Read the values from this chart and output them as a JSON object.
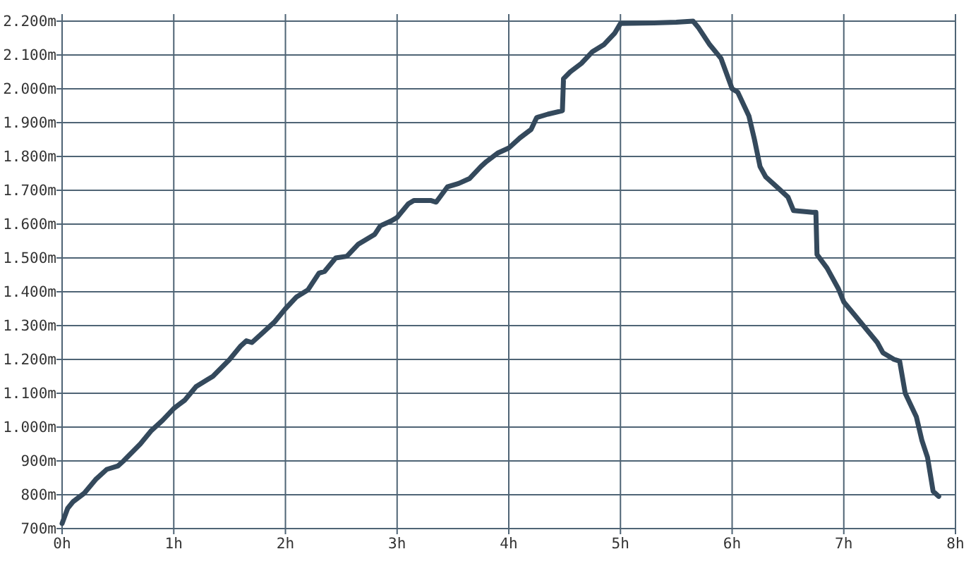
{
  "chart_data": {
    "type": "line",
    "xlim": [
      0,
      8
    ],
    "ylim": [
      700,
      2200
    ],
    "xticks": [
      {
        "value": 0,
        "label": "0h"
      },
      {
        "value": 1,
        "label": "1h"
      },
      {
        "value": 2,
        "label": "2h"
      },
      {
        "value": 3,
        "label": "3h"
      },
      {
        "value": 4,
        "label": "4h"
      },
      {
        "value": 5,
        "label": "5h"
      },
      {
        "value": 6,
        "label": "6h"
      },
      {
        "value": 7,
        "label": "7h"
      },
      {
        "value": 8,
        "label": "8h"
      }
    ],
    "yticks": [
      {
        "value": 700,
        "label": "700m"
      },
      {
        "value": 800,
        "label": "800m"
      },
      {
        "value": 900,
        "label": "900m"
      },
      {
        "value": 1000,
        "label": "1.000m"
      },
      {
        "value": 1100,
        "label": "1.100m"
      },
      {
        "value": 1200,
        "label": "1.200m"
      },
      {
        "value": 1300,
        "label": "1.300m"
      },
      {
        "value": 1400,
        "label": "1.400m"
      },
      {
        "value": 1500,
        "label": "1.500m"
      },
      {
        "value": 1600,
        "label": "1.600m"
      },
      {
        "value": 1700,
        "label": "1.700m"
      },
      {
        "value": 1800,
        "label": "1.800m"
      },
      {
        "value": 1900,
        "label": "1.900m"
      },
      {
        "value": 2000,
        "label": "2.000m"
      },
      {
        "value": 2100,
        "label": "2.100m"
      },
      {
        "value": 2200,
        "label": "2.200m"
      }
    ],
    "grid": true,
    "marker": "none",
    "line_style": "solid",
    "series": [
      {
        "color": "#34495c",
        "x": [
          0,
          0.05,
          0.1,
          0.2,
          0.3,
          0.4,
          0.5,
          0.55,
          0.7,
          0.8,
          0.9,
          1.0,
          1.1,
          1.2,
          1.3,
          1.35,
          1.5,
          1.6,
          1.65,
          1.7,
          1.8,
          1.9,
          2.0,
          2.1,
          2.2,
          2.3,
          2.35,
          2.45,
          2.55,
          2.65,
          2.8,
          2.85,
          2.95,
          3.0,
          3.1,
          3.15,
          3.3,
          3.35,
          3.45,
          3.55,
          3.65,
          3.75,
          3.8,
          3.9,
          4.0,
          4.1,
          4.2,
          4.25,
          4.35,
          4.48,
          4.49,
          4.55,
          4.65,
          4.75,
          4.85,
          4.95,
          5.0,
          5.3,
          5.5,
          5.65,
          5.7,
          5.8,
          5.9,
          6.0,
          6.05,
          6.15,
          6.2,
          6.25,
          6.3,
          6.4,
          6.5,
          6.55,
          6.72,
          6.75,
          6.76,
          6.85,
          6.95,
          7.0,
          7.1,
          7.2,
          7.3,
          7.35,
          7.45,
          7.5,
          7.55,
          7.65,
          7.7,
          7.75,
          7.8,
          7.85
        ],
        "values": [
          715,
          760,
          780,
          805,
          845,
          875,
          885,
          900,
          950,
          990,
          1020,
          1055,
          1080,
          1120,
          1140,
          1150,
          1200,
          1240,
          1255,
          1250,
          1280,
          1310,
          1350,
          1385,
          1405,
          1455,
          1460,
          1500,
          1505,
          1540,
          1570,
          1595,
          1610,
          1620,
          1660,
          1670,
          1670,
          1665,
          1710,
          1720,
          1735,
          1770,
          1785,
          1810,
          1825,
          1855,
          1880,
          1915,
          1925,
          1935,
          2030,
          2050,
          2075,
          2110,
          2130,
          2165,
          2193,
          2195,
          2197,
          2200,
          2180,
          2130,
          2090,
          2000,
          1990,
          1920,
          1850,
          1770,
          1740,
          1710,
          1680,
          1640,
          1635,
          1635,
          1510,
          1470,
          1410,
          1370,
          1330,
          1290,
          1250,
          1220,
          1200,
          1195,
          1100,
          1030,
          960,
          910,
          810,
          795
        ]
      }
    ]
  }
}
